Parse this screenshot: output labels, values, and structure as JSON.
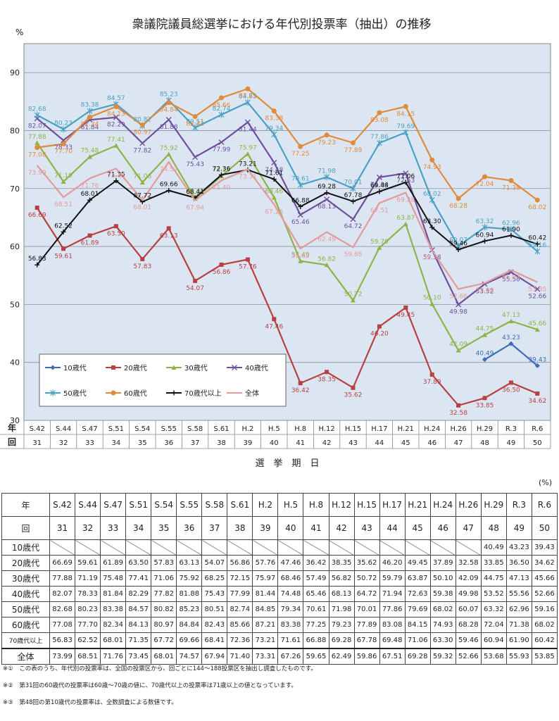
{
  "chart_data": {
    "type": "line",
    "title": "衆議院議員総選挙における年代別投票率（抽出）の推移",
    "ylabel": "%",
    "xlabel": "選　挙　期　日",
    "x_row_labels": [
      "年",
      "回"
    ],
    "ylim": [
      30,
      95
    ],
    "yticks": [
      30,
      40,
      50,
      60,
      70,
      80,
      90
    ],
    "grid": true,
    "legend_position": "bottom-left",
    "categories_year": [
      "S.42",
      "S.44",
      "S.47",
      "S.51",
      "S.54",
      "S.55",
      "S.58",
      "S.61",
      "H.2",
      "H.5",
      "H.8",
      "H.12",
      "H.15",
      "H.17",
      "H.21",
      "H.24",
      "H.26",
      "H.29",
      "R.3",
      "R.6"
    ],
    "categories_session": [
      "31",
      "32",
      "33",
      "34",
      "35",
      "36",
      "37",
      "38",
      "39",
      "40",
      "41",
      "42",
      "43",
      "44",
      "45",
      "46",
      "47",
      "48",
      "49",
      "50"
    ],
    "series": [
      {
        "name": "10歳代",
        "color": "#3a6fb7",
        "marker": "diamond",
        "values": [
          null,
          null,
          null,
          null,
          null,
          null,
          null,
          null,
          null,
          null,
          null,
          null,
          null,
          null,
          null,
          null,
          null,
          40.49,
          43.23,
          39.43
        ]
      },
      {
        "name": "20歳代",
        "color": "#b84040",
        "marker": "square",
        "values": [
          66.69,
          59.61,
          61.89,
          63.5,
          57.83,
          63.13,
          54.07,
          56.86,
          57.76,
          47.46,
          36.42,
          38.35,
          35.62,
          46.2,
          49.45,
          37.89,
          32.58,
          33.85,
          36.5,
          34.62
        ]
      },
      {
        "name": "30歳代",
        "color": "#8fb347",
        "marker": "triangle",
        "values": [
          77.88,
          71.19,
          75.48,
          77.41,
          71.06,
          75.92,
          68.25,
          72.15,
          75.97,
          68.46,
          57.49,
          56.82,
          50.72,
          59.79,
          63.87,
          50.1,
          42.09,
          44.75,
          47.13,
          45.66
        ]
      },
      {
        "name": "40歳代",
        "color": "#6e4f9c",
        "marker": "x",
        "values": [
          82.07,
          78.33,
          81.84,
          82.29,
          77.82,
          81.88,
          75.43,
          77.99,
          81.44,
          74.48,
          65.46,
          68.13,
          64.72,
          71.94,
          72.63,
          59.38,
          49.98,
          53.52,
          55.56,
          52.66
        ]
      },
      {
        "name": "50歳代",
        "color": "#4aa1c4",
        "marker": "asterisk",
        "values": [
          82.68,
          80.23,
          83.38,
          84.57,
          80.82,
          85.23,
          80.51,
          82.74,
          84.85,
          79.34,
          70.61,
          71.98,
          70.01,
          77.86,
          79.69,
          68.02,
          60.07,
          63.32,
          62.96,
          59.16
        ]
      },
      {
        "name": "60歳代",
        "color": "#e08a3c",
        "marker": "circle",
        "values": [
          77.08,
          77.7,
          82.34,
          84.13,
          80.97,
          84.84,
          82.43,
          85.66,
          87.21,
          83.38,
          77.25,
          79.23,
          77.89,
          83.08,
          84.15,
          74.93,
          68.28,
          72.04,
          71.38,
          68.02
        ]
      },
      {
        "name": "70歳代以上",
        "color": "#111111",
        "marker": "plus",
        "values": [
          56.83,
          62.52,
          68.01,
          71.35,
          67.72,
          69.66,
          68.41,
          72.36,
          73.21,
          71.61,
          66.88,
          69.28,
          67.78,
          69.48,
          71.06,
          63.3,
          59.46,
          60.94,
          61.9,
          60.42
        ]
      },
      {
        "name": "全体",
        "color": "#e39a9a",
        "marker": "none",
        "values": [
          73.99,
          68.51,
          71.76,
          73.45,
          68.01,
          74.57,
          67.94,
          71.4,
          73.31,
          67.26,
          59.65,
          62.49,
          59.86,
          67.51,
          69.28,
          59.32,
          52.66,
          53.68,
          55.93,
          53.85
        ]
      }
    ]
  },
  "table": {
    "unit": "(%)",
    "header_year_label": "年",
    "header_session_label": "回",
    "row_labels": [
      "10歳代",
      "20歳代",
      "30歳代",
      "40歳代",
      "50歳代",
      "60歳代",
      "70歳代以上",
      "全体"
    ]
  },
  "notes": [
    "※①　この表のうち、年代別の投票率は、全国の投票区から、回ごとに144～188投票区を抽出し調査したものです。",
    "※②　第31回の60歳代の投票率は60歳～70歳の値に、70歳代以上の投票率は71歳以上の値となっています。",
    "※③　第48回の第10歳代の投票率は、全数調査による数値です。"
  ]
}
